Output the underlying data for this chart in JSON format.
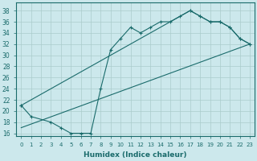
{
  "xlabel": "Humidex (Indice chaleur)",
  "background_color": "#cce8ec",
  "line_color": "#1a6b6b",
  "grid_color": "#aacccc",
  "ylim": [
    15.5,
    39.5
  ],
  "xlim": [
    -0.5,
    23.5
  ],
  "yticks": [
    16,
    18,
    20,
    22,
    24,
    26,
    28,
    30,
    32,
    34,
    36,
    38
  ],
  "xticks": [
    0,
    1,
    2,
    3,
    4,
    5,
    6,
    7,
    8,
    9,
    10,
    11,
    12,
    13,
    14,
    15,
    16,
    17,
    18,
    19,
    20,
    21,
    22,
    23
  ],
  "curve_x": [
    0,
    1,
    3,
    4,
    5,
    6,
    7,
    8,
    9,
    10,
    11,
    12,
    13,
    14,
    15,
    16,
    17,
    18,
    19,
    20,
    21,
    22,
    23
  ],
  "curve_y": [
    21,
    19,
    18,
    17,
    16,
    16,
    16,
    24,
    31,
    33,
    35,
    34,
    35,
    36,
    36,
    37,
    38,
    37,
    36,
    36,
    35,
    33,
    32
  ],
  "upper_line_x": [
    0,
    17,
    18,
    19,
    20,
    21,
    22,
    23
  ],
  "upper_line_y": [
    21,
    38,
    37,
    36,
    36,
    35,
    33,
    32
  ],
  "lower_line_x": [
    0,
    23
  ],
  "lower_line_y": [
    17,
    32
  ]
}
